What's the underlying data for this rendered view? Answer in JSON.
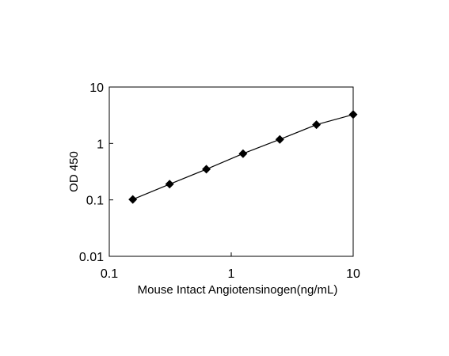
{
  "chart_data": {
    "type": "scatter",
    "title": "",
    "xlabel": "Mouse Intact Angiotensinogen(ng/mL)",
    "ylabel": "OD 450",
    "x_scale": "log",
    "y_scale": "log",
    "xlim": [
      0.1,
      10
    ],
    "ylim": [
      0.01,
      10
    ],
    "x_tick_labels": [
      "0.1",
      "1",
      "10"
    ],
    "y_tick_labels": [
      "0.01",
      "0.1",
      "1",
      "10"
    ],
    "grid": false,
    "legend": "none",
    "series": [
      {
        "x": [
          0.156,
          0.3125,
          0.625,
          1.25,
          2.5,
          5,
          10
        ],
        "y": [
          0.102,
          0.19,
          0.35,
          0.66,
          1.18,
          2.15,
          3.25
        ],
        "marker": "diamond",
        "color": "#000000",
        "line": "straight"
      }
    ]
  }
}
